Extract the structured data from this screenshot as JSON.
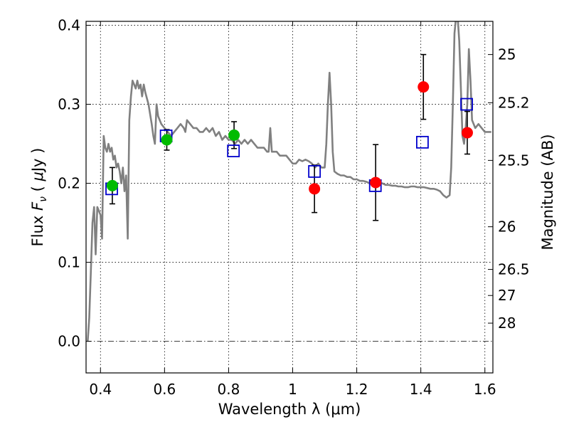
{
  "chart_data": {
    "type": "scatter",
    "title": "",
    "xlabel": "Wavelength  λ (μm)",
    "ylabel": "Flux  F_ν  ( μJy )",
    "ylabel_right": "Magnitude (AB)",
    "xlim": [
      0.355,
      1.625
    ],
    "ylim": [
      -0.04,
      0.405
    ],
    "grid": true,
    "x_ticks": [
      0.4,
      0.6,
      0.8,
      1.0,
      1.2,
      1.4,
      1.6
    ],
    "x_tick_labels": [
      "0.4",
      "0.6",
      "0.8",
      "1",
      "1.2",
      "1.4",
      "1.6"
    ],
    "y_ticks": [
      0.0,
      0.1,
      0.2,
      0.3,
      0.4
    ],
    "y_tick_labels": [
      "0.0",
      "0.1",
      "0.2",
      "0.3",
      "0.4"
    ],
    "right_ticks": [
      {
        "label": "25",
        "flux": 0.363
      },
      {
        "label": "25.2",
        "flux": 0.302
      },
      {
        "label": "25.5",
        "flux": 0.229
      },
      {
        "label": "26",
        "flux": 0.145
      },
      {
        "label": "26.5",
        "flux": 0.091
      },
      {
        "label": "27",
        "flux": 0.058
      },
      {
        "label": "28",
        "flux": 0.023
      }
    ],
    "model_spectrum": {
      "color": "#808080",
      "points": [
        [
          0.36,
          0.0
        ],
        [
          0.365,
          0.03
        ],
        [
          0.37,
          0.09
        ],
        [
          0.375,
          0.15
        ],
        [
          0.38,
          0.17
        ],
        [
          0.385,
          0.11
        ],
        [
          0.39,
          0.17
        ],
        [
          0.395,
          0.165
        ],
        [
          0.4,
          0.16
        ],
        [
          0.405,
          0.13
        ],
        [
          0.41,
          0.26
        ],
        [
          0.415,
          0.245
        ],
        [
          0.42,
          0.24
        ],
        [
          0.425,
          0.25
        ],
        [
          0.43,
          0.24
        ],
        [
          0.435,
          0.245
        ],
        [
          0.44,
          0.23
        ],
        [
          0.445,
          0.235
        ],
        [
          0.45,
          0.22
        ],
        [
          0.455,
          0.225
        ],
        [
          0.46,
          0.215
        ],
        [
          0.465,
          0.2
        ],
        [
          0.47,
          0.22
        ],
        [
          0.475,
          0.19
        ],
        [
          0.48,
          0.21
        ],
        [
          0.485,
          0.13
        ],
        [
          0.49,
          0.28
        ],
        [
          0.495,
          0.31
        ],
        [
          0.5,
          0.33
        ],
        [
          0.505,
          0.325
        ],
        [
          0.51,
          0.32
        ],
        [
          0.515,
          0.33
        ],
        [
          0.52,
          0.32
        ],
        [
          0.525,
          0.325
        ],
        [
          0.53,
          0.31
        ],
        [
          0.535,
          0.325
        ],
        [
          0.54,
          0.315
        ],
        [
          0.55,
          0.3
        ],
        [
          0.56,
          0.275
        ],
        [
          0.565,
          0.26
        ],
        [
          0.57,
          0.25
        ],
        [
          0.575,
          0.3
        ],
        [
          0.58,
          0.285
        ],
        [
          0.59,
          0.275
        ],
        [
          0.6,
          0.27
        ],
        [
          0.61,
          0.265
        ],
        [
          0.62,
          0.26
        ],
        [
          0.63,
          0.265
        ],
        [
          0.64,
          0.27
        ],
        [
          0.65,
          0.275
        ],
        [
          0.66,
          0.27
        ],
        [
          0.665,
          0.265
        ],
        [
          0.67,
          0.28
        ],
        [
          0.68,
          0.275
        ],
        [
          0.69,
          0.27
        ],
        [
          0.7,
          0.27
        ],
        [
          0.71,
          0.265
        ],
        [
          0.72,
          0.265
        ],
        [
          0.73,
          0.27
        ],
        [
          0.74,
          0.265
        ],
        [
          0.75,
          0.27
        ],
        [
          0.76,
          0.26
        ],
        [
          0.77,
          0.265
        ],
        [
          0.78,
          0.255
        ],
        [
          0.79,
          0.26
        ],
        [
          0.8,
          0.255
        ],
        [
          0.81,
          0.255
        ],
        [
          0.82,
          0.25
        ],
        [
          0.83,
          0.255
        ],
        [
          0.84,
          0.25
        ],
        [
          0.85,
          0.255
        ],
        [
          0.86,
          0.25
        ],
        [
          0.87,
          0.255
        ],
        [
          0.88,
          0.25
        ],
        [
          0.89,
          0.245
        ],
        [
          0.9,
          0.245
        ],
        [
          0.91,
          0.245
        ],
        [
          0.92,
          0.24
        ],
        [
          0.925,
          0.24
        ],
        [
          0.93,
          0.27
        ],
        [
          0.935,
          0.24
        ],
        [
          0.94,
          0.24
        ],
        [
          0.95,
          0.24
        ],
        [
          0.96,
          0.235
        ],
        [
          0.97,
          0.235
        ],
        [
          0.98,
          0.235
        ],
        [
          0.99,
          0.23
        ],
        [
          1.0,
          0.225
        ],
        [
          1.01,
          0.225
        ],
        [
          1.02,
          0.23
        ],
        [
          1.03,
          0.228
        ],
        [
          1.04,
          0.23
        ],
        [
          1.05,
          0.228
        ],
        [
          1.06,
          0.225
        ],
        [
          1.07,
          0.22
        ],
        [
          1.08,
          0.225
        ],
        [
          1.09,
          0.22
        ],
        [
          1.1,
          0.22
        ],
        [
          1.105,
          0.25
        ],
        [
          1.11,
          0.3
        ],
        [
          1.115,
          0.34
        ],
        [
          1.12,
          0.3
        ],
        [
          1.125,
          0.24
        ],
        [
          1.13,
          0.215
        ],
        [
          1.14,
          0.212
        ],
        [
          1.15,
          0.21
        ],
        [
          1.16,
          0.21
        ],
        [
          1.17,
          0.208
        ],
        [
          1.18,
          0.208
        ],
        [
          1.19,
          0.205
        ],
        [
          1.2,
          0.205
        ],
        [
          1.21,
          0.203
        ],
        [
          1.22,
          0.203
        ],
        [
          1.23,
          0.202
        ],
        [
          1.24,
          0.2
        ],
        [
          1.25,
          0.2
        ],
        [
          1.26,
          0.2
        ],
        [
          1.27,
          0.2
        ],
        [
          1.28,
          0.2
        ],
        [
          1.29,
          0.198
        ],
        [
          1.3,
          0.198
        ],
        [
          1.31,
          0.197
        ],
        [
          1.32,
          0.197
        ],
        [
          1.33,
          0.196
        ],
        [
          1.34,
          0.196
        ],
        [
          1.35,
          0.195
        ],
        [
          1.36,
          0.195
        ],
        [
          1.37,
          0.196
        ],
        [
          1.38,
          0.196
        ],
        [
          1.39,
          0.195
        ],
        [
          1.4,
          0.195
        ],
        [
          1.41,
          0.195
        ],
        [
          1.42,
          0.194
        ],
        [
          1.43,
          0.193
        ],
        [
          1.44,
          0.193
        ],
        [
          1.45,
          0.192
        ],
        [
          1.46,
          0.19
        ],
        [
          1.47,
          0.185
        ],
        [
          1.48,
          0.182
        ],
        [
          1.49,
          0.185
        ],
        [
          1.495,
          0.22
        ],
        [
          1.5,
          0.3
        ],
        [
          1.505,
          0.39
        ],
        [
          1.51,
          0.41
        ],
        [
          1.515,
          0.41
        ],
        [
          1.52,
          0.38
        ],
        [
          1.525,
          0.32
        ],
        [
          1.53,
          0.26
        ],
        [
          1.535,
          0.25
        ],
        [
          1.54,
          0.27
        ],
        [
          1.545,
          0.3
        ],
        [
          1.55,
          0.37
        ],
        [
          1.555,
          0.33
        ],
        [
          1.56,
          0.28
        ],
        [
          1.57,
          0.27
        ],
        [
          1.58,
          0.275
        ],
        [
          1.59,
          0.27
        ],
        [
          1.6,
          0.265
        ],
        [
          1.61,
          0.265
        ],
        [
          1.62,
          0.265
        ]
      ]
    },
    "series": [
      {
        "marker": "square-open",
        "color": "#0000cc",
        "points": [
          {
            "x": 0.435,
            "y": 0.193
          },
          {
            "x": 0.605,
            "y": 0.26
          },
          {
            "x": 0.815,
            "y": 0.241
          },
          {
            "x": 1.068,
            "y": 0.215
          },
          {
            "x": 1.258,
            "y": 0.197
          },
          {
            "x": 1.405,
            "y": 0.252
          },
          {
            "x": 1.543,
            "y": 0.3
          }
        ]
      },
      {
        "marker": "circle",
        "color": "#00bb00",
        "points": [
          {
            "x": 0.437,
            "y": 0.197,
            "err": 0.023
          },
          {
            "x": 0.607,
            "y": 0.255,
            "err": 0.013
          },
          {
            "x": 0.817,
            "y": 0.261,
            "err": 0.017
          }
        ]
      },
      {
        "marker": "circle",
        "color": "#ff0000",
        "points": [
          {
            "x": 1.068,
            "y": 0.193,
            "err": 0.03
          },
          {
            "x": 1.259,
            "y": 0.201,
            "err": 0.048
          },
          {
            "x": 1.408,
            "y": 0.322,
            "err": 0.041
          },
          {
            "x": 1.545,
            "y": 0.264,
            "err": 0.027
          }
        ]
      }
    ]
  }
}
